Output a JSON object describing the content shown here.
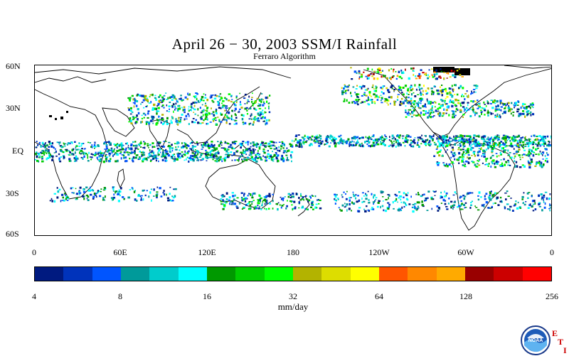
{
  "title": "April 26 − 30, 2003 SSM/I Rainfall",
  "subtitle": "Ferraro Algorithm",
  "map": {
    "lat_labels": [
      "60N",
      "30N",
      "EQ",
      "30S",
      "60S"
    ],
    "lon_labels": [
      "0",
      "60E",
      "120E",
      "180",
      "120W",
      "60W",
      "0"
    ]
  },
  "colorbar": {
    "units": "mm/day",
    "tick_labels": [
      "4",
      "8",
      "16",
      "32",
      "64",
      "128",
      "256"
    ],
    "colors": [
      "#001a80",
      "#0033bb",
      "#0055ff",
      "#009a9a",
      "#00cccc",
      "#00ffff",
      "#009900",
      "#00cc00",
      "#00ff00",
      "#b3b300",
      "#dddd00",
      "#ffff00",
      "#ff5500",
      "#ff8800",
      "#ffaa00",
      "#990000",
      "#cc0000",
      "#ff0000"
    ]
  },
  "logo": {
    "name": "NOAA",
    "letters": [
      "E",
      "T",
      "I"
    ]
  }
}
